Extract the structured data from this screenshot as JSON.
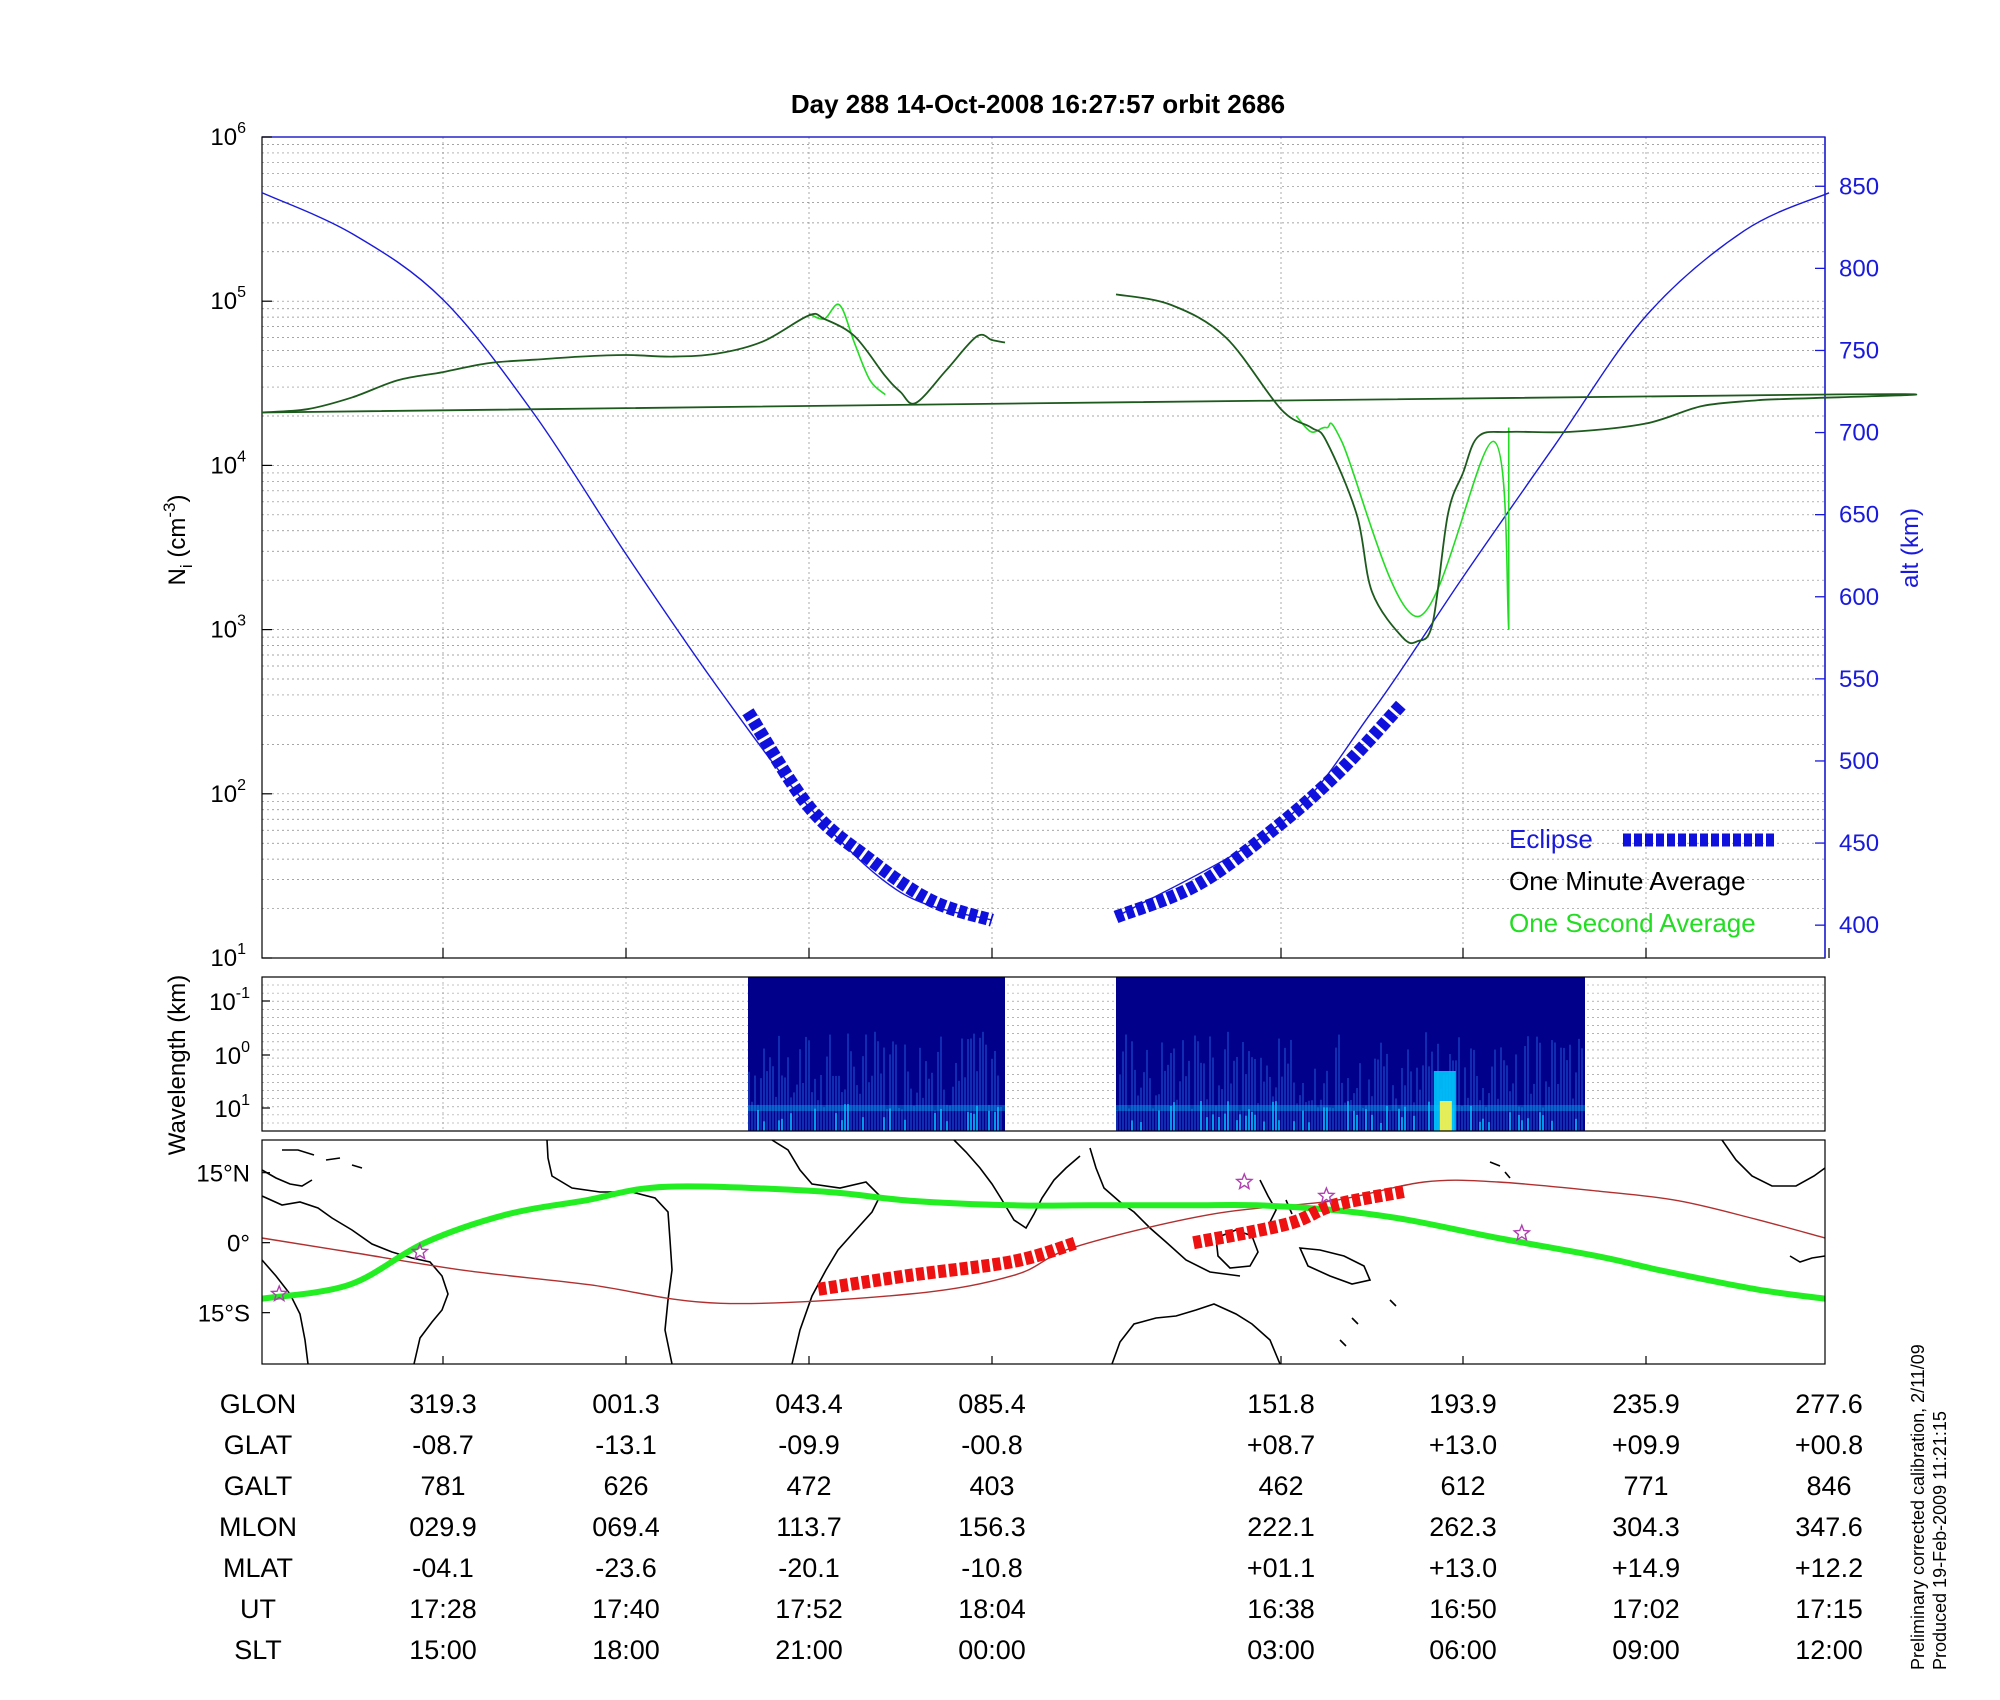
{
  "title": "Day 288  14-Oct-2008 16:27:57   orbit 2686",
  "colors": {
    "ni_one_minute": "#000000",
    "ni_one_second": "#22dd22",
    "altitude": "#1a1adc",
    "eclipse": "#1010dd",
    "ground_track": "#22ee22",
    "magnetic_equator": "#b03030",
    "eclipse_track": "#ee1111",
    "star_marker": "#b040b0"
  },
  "chart_data": [
    {
      "type": "line",
      "panel": "density",
      "ylabel": "N_i (cm^-3)",
      "yscale": "log",
      "ylim": [
        10,
        1000000
      ],
      "y_ticks": [
        {
          "base": "10",
          "exp": "1"
        },
        {
          "base": "10",
          "exp": "2"
        },
        {
          "base": "10",
          "exp": "3"
        },
        {
          "base": "10",
          "exp": "4"
        },
        {
          "base": "10",
          "exp": "5"
        },
        {
          "base": "10",
          "exp": "6"
        }
      ],
      "y2label": "alt (km)",
      "y2lim": [
        380,
        880
      ],
      "y2_ticks": [
        "400",
        "450",
        "500",
        "550",
        "600",
        "650",
        "700",
        "750",
        "800",
        "850"
      ],
      "x_ticks_ut": [
        "17:28",
        "17:40",
        "17:52",
        "18:04",
        "16:38",
        "16:50",
        "17:02",
        "17:15"
      ],
      "series": [
        {
          "name": "One Minute Average",
          "segments": [
            {
              "ut": [
                "17:16",
                "17:19",
                "17:22",
                "17:25",
                "17:28",
                "17:31",
                "17:34",
                "17:37",
                "17:40",
                "17:43",
                "17:46",
                "17:49",
                "17:52",
                "17:53",
                "17:55",
                "17:57",
                "17:58",
                "17:59",
                "18:01",
                "18:03",
                "18:04",
                "18:05"
              ],
              "ni": [
                21000,
                22000,
                26000,
                33000,
                37000,
                42000,
                44000,
                46000,
                47000,
                46000,
                48000,
                57000,
                82000,
                78000,
                61000,
                35000,
                28000,
                24000,
                38000,
                61000,
                58000,
                56000
              ]
            },
            {
              "ut": [
                "16:32",
                "16:34",
                "16:36",
                "16:38",
                "16:40",
                "16:41",
                "16:43",
                "16:44",
                "16:46",
                "16:47",
                "16:48",
                "16:49",
                "16:50",
                "16:51",
                "16:53",
                "16:57",
                "17:02",
                "17:06",
                "17:10",
                "17:14",
                "17:16"
              ],
              "ni": [
                110000,
                95000,
                60000,
                22000,
                17000,
                14000,
                5000,
                1700,
                900,
                850,
                1100,
                5000,
                9000,
                15000,
                16000,
                16000,
                18000,
                23000,
                25000,
                27000,
                21000
              ]
            }
          ]
        },
        {
          "name": "One Second Average",
          "segments": [
            {
              "ut": [
                "17:52",
                "17:53",
                "17:54",
                "17:55",
                "17:56",
                "17:57"
              ],
              "ni": [
                84000,
                78000,
                95000,
                55000,
                33000,
                27000
              ]
            },
            {
              "ut": [
                "16:39",
                "16:40",
                "16:41",
                "16:42",
                "16:47",
                "16:52",
                "16:53"
              ],
              "ni": [
                20000,
                16000,
                17000,
                14000,
                1200,
                14000,
                1000
              ]
            }
          ]
        },
        {
          "name": "altitude",
          "axis": "y2",
          "ut": [
            "17:16",
            "17:22",
            "17:28",
            "17:34",
            "17:40",
            "17:46",
            "17:52",
            "17:58",
            "18:04",
            "16:32",
            "16:38",
            "16:44",
            "16:50",
            "16:56",
            "17:02",
            "17:09",
            "17:15"
          ],
          "alt_km": [
            846,
            821,
            781,
            711,
            626,
            545,
            472,
            420,
            403,
            405,
            462,
            530,
            612,
            692,
            771,
            823,
            846
          ]
        },
        {
          "name": "Eclipse",
          "segments": [
            {
              "ut": [
                "17:48",
                "17:52",
                "17:56",
                "18:00",
                "18:04"
              ],
              "alt_km": [
                "530",
                "472",
                "440",
                "415",
                "403"
              ]
            },
            {
              "ut": [
                "16:32",
                "16:35",
                "16:38",
                "16:42",
                "16:46"
              ],
              "alt_km": [
                "405",
                "425",
                "462",
                "495",
                "535"
              ]
            }
          ]
        }
      ]
    },
    {
      "type": "heatmap",
      "panel": "spectrogram",
      "ylabel": "Wavelength (km)",
      "yscale": "log",
      "y_ticks": [
        {
          "base": "10",
          "exp": "-1"
        },
        {
          "base": "10",
          "exp": "0"
        },
        {
          "base": "10",
          "exp": "1"
        }
      ],
      "data_intervals_ut": [
        [
          "17:48",
          "18:05"
        ],
        [
          "16:32",
          "16:58"
        ]
      ],
      "colormap": [
        "#00008b",
        "#1e50d2",
        "#00c8ff",
        "#f0f050"
      ]
    },
    {
      "type": "line",
      "panel": "map",
      "y_ticks": [
        "15°N",
        "0°",
        "15°S"
      ],
      "series": [
        {
          "name": "ground track",
          "glon": [
            277.6,
            300,
            319.3,
            340,
            360,
            381.3,
            420,
            443.4,
            470,
            490,
            515,
            532,
            551.8,
            570,
            593.9,
            620,
            635.9,
            660,
            677.6
          ],
          "glat": [
            -12,
            -9,
            0,
            6,
            9,
            12,
            11,
            9,
            8,
            8,
            8,
            8,
            7,
            5,
            1,
            -3,
            -6,
            -10,
            -12
          ]
        },
        {
          "name": "magnetic equator",
          "glon": [
            277.6,
            300,
            330,
            361.3,
            395,
            443.4,
            470,
            485.4,
            520,
            551.8,
            575,
            593.9,
            620,
            640,
            660,
            677.6
          ],
          "glat": [
            1,
            -2,
            -6,
            -9,
            -13,
            -11,
            -7,
            -1,
            6,
            9,
            13,
            13,
            11,
            9,
            5,
            1
          ]
        },
        {
          "name": "eclipse track",
          "segments": [
            {
              "glon": [
                420,
                443.4,
                470,
                486
              ],
              "glat": [
                -10,
                -7,
                -4,
                0
              ]
            },
            {
              "glon": [
                516,
                540,
                551.8,
                570
              ],
              "glat": [
                0,
                4,
                8,
                11
              ]
            }
          ]
        }
      ],
      "markers": [
        {
          "glon": 282,
          "glat": -11
        },
        {
          "glon": 318,
          "glat": -2
        },
        {
          "glon": 529,
          "glat": 13
        },
        {
          "glon": 550,
          "glat": 10
        },
        {
          "glon": 600,
          "glat": 2
        }
      ]
    }
  ],
  "legend": {
    "eclipse": "Eclipse",
    "one_minute": "One Minute Average",
    "one_second": "One Second Average"
  },
  "table": {
    "row_labels": [
      "GLON",
      "GLAT",
      "GALT",
      "MLON",
      "MLAT",
      "UT",
      "SLT"
    ],
    "columns": [
      [
        "319.3",
        "-08.7",
        "781",
        "029.9",
        "-04.1",
        "17:28",
        "15:00"
      ],
      [
        "001.3",
        "-13.1",
        "626",
        "069.4",
        "-23.6",
        "17:40",
        "18:00"
      ],
      [
        "043.4",
        "-09.9",
        "472",
        "113.7",
        "-20.1",
        "17:52",
        "21:00"
      ],
      [
        "085.4",
        "-00.8",
        "403",
        "156.3",
        "-10.8",
        "18:04",
        "00:00"
      ],
      [
        "151.8",
        "+08.7",
        "462",
        "222.1",
        "+01.1",
        "16:38",
        "03:00"
      ],
      [
        "193.9",
        "+13.0",
        "612",
        "262.3",
        "+13.0",
        "16:50",
        "06:00"
      ],
      [
        "235.9",
        "+09.9",
        "771",
        "304.3",
        "+14.9",
        "17:02",
        "09:00"
      ],
      [
        "277.6",
        "+00.8",
        "846",
        "347.6",
        "+12.2",
        "17:15",
        "12:00"
      ]
    ]
  },
  "footer": {
    "line1": "Preliminary corrected calibration, 2/11/09",
    "line2": "Produced 19-Feb-2009 11:21:15"
  }
}
